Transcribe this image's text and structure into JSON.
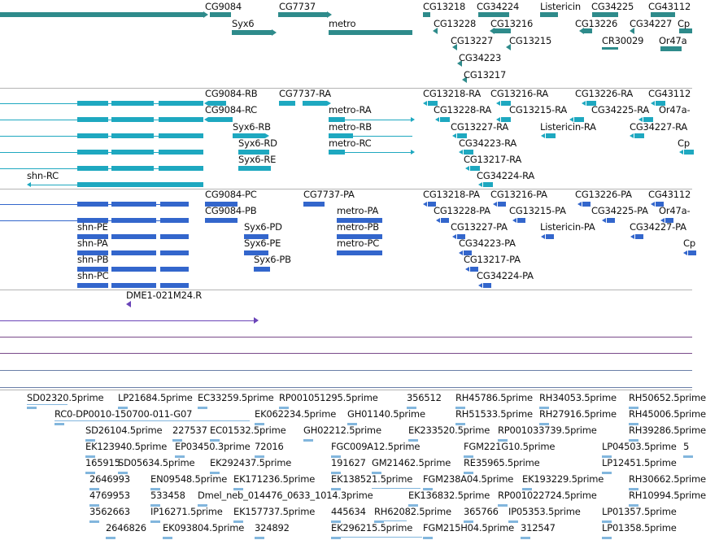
{
  "colors": {
    "gene": "#2e8b8b",
    "transcript": "#1ea8c0",
    "protein": "#3366cc",
    "clone": "#6a44b8",
    "est": "#82b6dd",
    "track_line": "#7a4a8a",
    "track_line_blue": "#6a7fa8",
    "separator": "#b4b4b4"
  },
  "icons": {
    "arrow_right": "triangle-right",
    "arrow_left": "triangle-left"
  },
  "tracks": {
    "genes": {
      "labels": [
        "CG9084",
        "CG7737",
        "CG13218",
        "CG34224",
        "Listericin",
        "CG34225",
        "CG43112",
        "Syx6",
        "metro",
        "CG13228",
        "CG13216",
        "CG13226",
        "CG34227",
        "Cp",
        "CG13227",
        "CG13215",
        "CR30029",
        "Or47a",
        "CG34223",
        "CG13217"
      ]
    },
    "transcripts": {
      "labels": [
        "CG9084-RB",
        "CG7737-RA",
        "CG13218-RA",
        "CG13216-RA",
        "CG13226-RA",
        "CG43112",
        "CG9084-RC",
        "metro-RA",
        "CG13228-RA",
        "CG13215-RA",
        "CG34225-RA",
        "Or47a-",
        "Syx6-RB",
        "metro-RB",
        "CG13227-RA",
        "Listericin-RA",
        "CG34227-RA",
        "Syx6-RD",
        "metro-RC",
        "CG34223-RA",
        "Cp",
        "Syx6-RE",
        "CG13217-RA",
        "shn-RC",
        "CG34224-RA"
      ]
    },
    "proteins": {
      "labels": [
        "CG9084-PC",
        "CG7737-PA",
        "CG13218-PA",
        "CG13216-PA",
        "CG13226-PA",
        "CG43112",
        "CG9084-PB",
        "metro-PA",
        "CG13228-PA",
        "CG13215-PA",
        "CG34225-PA",
        "Or47a-",
        "shn-PE",
        "Syx6-PD",
        "metro-PB",
        "CG13227-PA",
        "Listericin-PA",
        "CG34227-PA",
        "shn-PA",
        "Syx6-PE",
        "metro-PC",
        "CG34223-PA",
        "Cp",
        "shn-PB",
        "Syx6-PB",
        "CG13217-PA",
        "shn-PC",
        "CG34224-PA"
      ]
    },
    "clones": {
      "labels": [
        "DME1-021M24.R"
      ]
    },
    "ests": {
      "labels": [
        "SD02320.5prime",
        "LP21684.5prime",
        "EC33259.5prime",
        "RP001051295.5prime",
        "356512",
        "RH45786.5prime",
        "RH34053.5prime",
        "RH50652.5prime",
        "RC0-DP0010-150700-011-G07",
        "EK062234.5prime",
        "GH01140.5prime",
        "RH51533.5prime",
        "RH27916.5prime",
        "RH45006.5prime",
        "SD26104.5prime",
        "227537",
        "EC01532.5prime",
        "GH02212.5prime",
        "EK233520.5prime",
        "RP001033739.5prime",
        "RH39286.5prime",
        "EK123940.5prime",
        "EP03450.3prime",
        "72016",
        "FGC009A12.5prime",
        "FGM221G10.5prime",
        "LP04503.5prime",
        "5",
        "165915",
        "SD05634.5prime",
        "EK292437.5prime",
        "191627",
        "GM21462.5prime",
        "RE35965.5prime",
        "LP12451.5prime",
        "2646993",
        "EN09548.5prime",
        "EK171236.5prime",
        "EK138521.5prime",
        "FGM238A04.5prime",
        "EK193229.5prime",
        "RH30662.5prime",
        "4769953",
        "533458",
        "Dmel_neb_014476_0633_1014.3prime",
        "EK136832.5prime",
        "RP001022724.5prime",
        "RH10994.5prime",
        "3562663",
        "IP16271.5prime",
        "EK157737.5prime",
        "445634",
        "RH62082.5prime",
        "365766",
        "IP05353.5prime",
        "LP01357.5prime",
        "2646826",
        "EK093804.5prime",
        "324892",
        "EK296215.5prime",
        "FGM215H04.5prime",
        "312547",
        "LP01358.5prime"
      ]
    }
  }
}
